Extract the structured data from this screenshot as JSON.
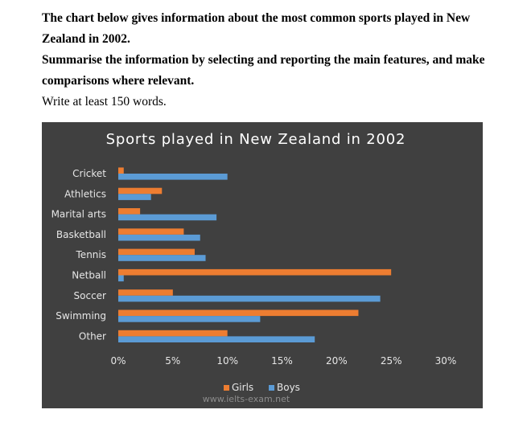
{
  "prompt": {
    "line1": "The chart below gives information about the most common sports played in New",
    "line2": "Zealand in 2002.",
    "line3": "Summarise the information by selecting and reporting the main features, and make",
    "line4": "comparisons where relevant.",
    "line5": "Write at least 150 words."
  },
  "chart_data": {
    "type": "bar",
    "orientation": "horizontal",
    "title": "Sports played in New Zealand in 2002",
    "categories": [
      "Cricket",
      "Athletics",
      "Marital arts",
      "Basketball",
      "Tennis",
      "Netball",
      "Soccer",
      "Swimming",
      "Other"
    ],
    "series": [
      {
        "name": "Girls",
        "color": "#ed7d31",
        "values": [
          0.5,
          4,
          2,
          6,
          7,
          25,
          5,
          22,
          10
        ]
      },
      {
        "name": "Boys",
        "color": "#5b9bd5",
        "values": [
          10,
          3,
          9,
          7.5,
          8,
          0.5,
          24,
          13,
          18
        ]
      }
    ],
    "xlim": [
      0,
      30
    ],
    "x_ticks": [
      "0%",
      "5%",
      "10%",
      "15%",
      "20%",
      "25%",
      "30%"
    ],
    "xlabel": "",
    "ylabel": "",
    "grid": false,
    "legend_position": "bottom",
    "watermark": "www.ielts-exam.net"
  }
}
